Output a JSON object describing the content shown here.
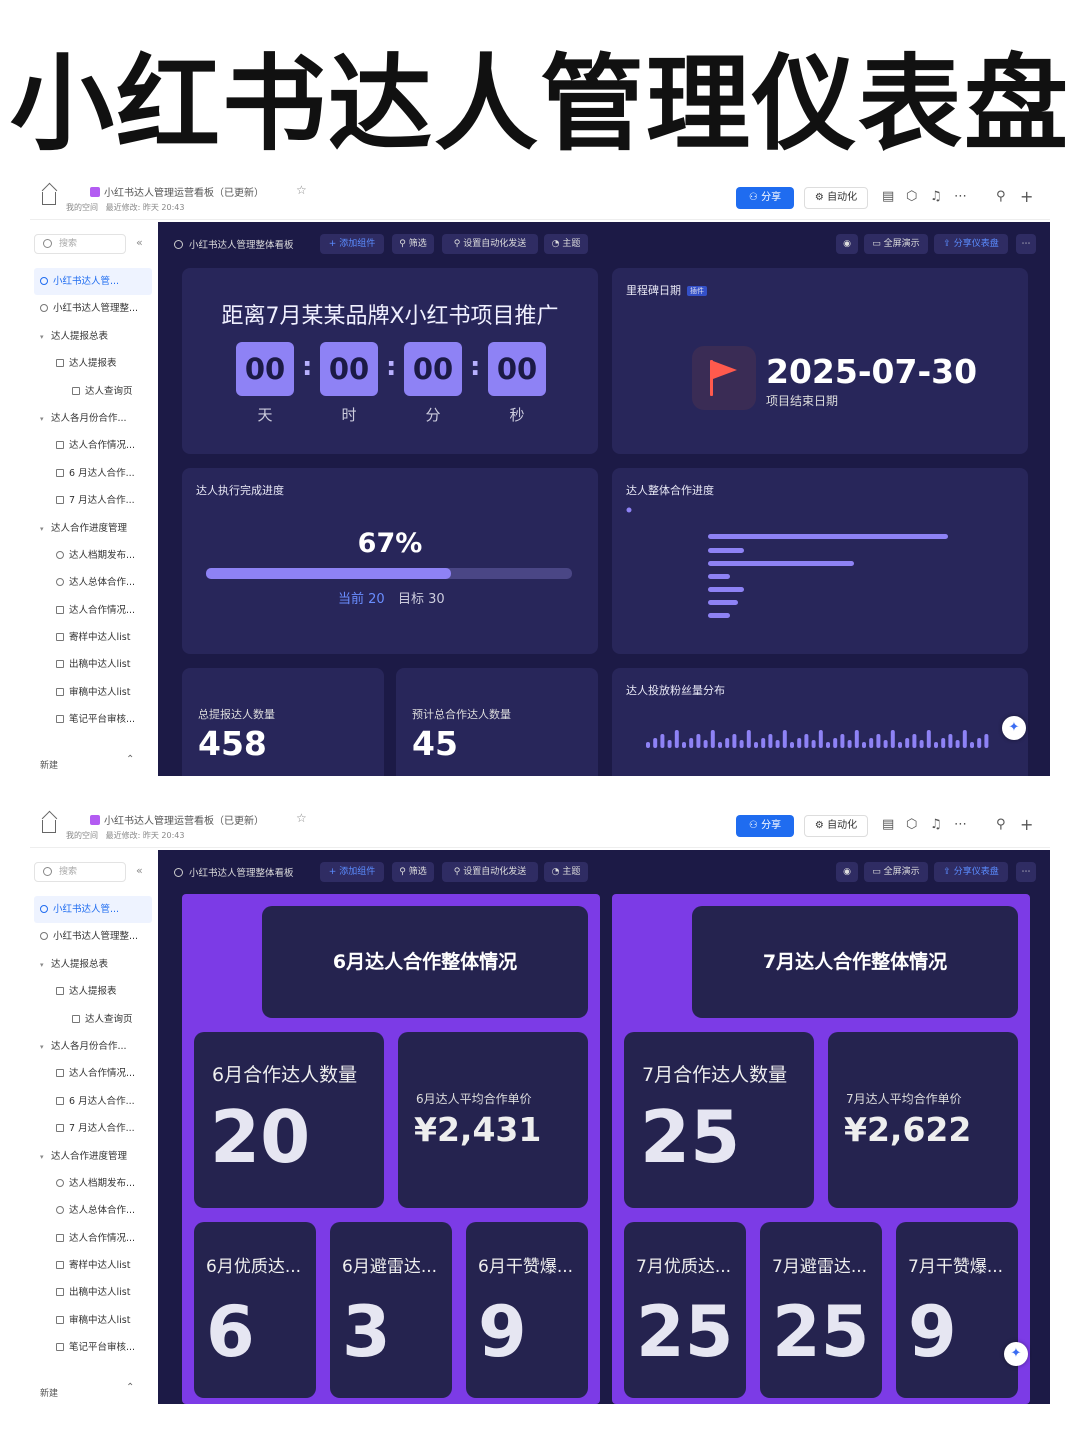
{
  "page_title": "小红书达人管理仪表盘",
  "top": {
    "crumb_title": "小红书达人管理运营看板（已更新）",
    "space": "我的空间",
    "modified": "最近修改: 昨天 20:43",
    "share": "分享",
    "automation": "自动化"
  },
  "sidebar": {
    "search_placeholder": "搜索",
    "new_label": "新建",
    "items": [
      {
        "label": "小红书达人管...",
        "type": "dash",
        "indent": 0,
        "active": true
      },
      {
        "label": "小红书达人管理整...",
        "type": "dash",
        "indent": 0
      },
      {
        "label": "达人提报总表",
        "type": "folder",
        "indent": 0
      },
      {
        "label": "达人提报表",
        "type": "table",
        "indent": 1
      },
      {
        "label": "达人查询页",
        "type": "form",
        "indent": 2
      },
      {
        "label": "达人各月份合作...",
        "type": "folder",
        "indent": 0
      },
      {
        "label": "达人合作情况...",
        "type": "table",
        "indent": 1
      },
      {
        "label": "6 月达人合作...",
        "type": "table",
        "indent": 1
      },
      {
        "label": "7 月达人合作...",
        "type": "table",
        "indent": 1
      },
      {
        "label": "达人合作进度管理",
        "type": "folder",
        "indent": 0
      },
      {
        "label": "达人档期发布...",
        "type": "dash",
        "indent": 1
      },
      {
        "label": "达人总体合作...",
        "type": "dash",
        "indent": 1
      },
      {
        "label": "达人合作情况...",
        "type": "table",
        "indent": 1
      },
      {
        "label": "寄样中达人list",
        "type": "table",
        "indent": 1
      },
      {
        "label": "出稿中达人list",
        "type": "table",
        "indent": 1
      },
      {
        "label": "审稿中达人list",
        "type": "table",
        "indent": 1
      },
      {
        "label": "笔记平台审核...",
        "type": "table",
        "indent": 1
      }
    ]
  },
  "dash_toolbar": {
    "title": "小红书达人管理整体看板",
    "add": "+ 添加组件",
    "filter": "筛选",
    "auto_send": "设置自动化发送",
    "theme": "主题",
    "fullscreen": "全屏演示",
    "share_dash": "分享仪表盘"
  },
  "countdown": {
    "heading": "距离7月某某品牌X小红书项目推广",
    "units": [
      {
        "value": "00",
        "label": "天"
      },
      {
        "value": "00",
        "label": "时"
      },
      {
        "value": "00",
        "label": "分"
      },
      {
        "value": "00",
        "label": "秒"
      }
    ]
  },
  "milestone": {
    "title": "里程碑日期",
    "date": "2025-07-30",
    "subtitle": "项目结束日期"
  },
  "progress": {
    "title": "达人执行完成进度",
    "percent_text": "67%",
    "fraction": 0.67,
    "current": "当前 20",
    "target": "目标 30"
  },
  "overall_progress": {
    "title": "达人整体合作进度"
  },
  "fans_dist": {
    "title": "达人投放粉丝量分布"
  },
  "stats": [
    {
      "label": "总提报达人数量",
      "value": "458"
    },
    {
      "label": "预计总合作达人数量",
      "value": "45"
    }
  ],
  "june": {
    "header": "6月达人合作整体情况",
    "count_label": "6月合作达人数量",
    "count": "20",
    "price_label": "6月达人平均合作单价",
    "price": "¥2,431",
    "metrics": [
      {
        "label": "6月优质达...",
        "value": "6"
      },
      {
        "label": "6月避雷达...",
        "value": "3"
      },
      {
        "label": "6月干赞爆...",
        "value": "9"
      }
    ]
  },
  "july": {
    "header": "7月达人合作整体情况",
    "count_label": "7月合作达人数量",
    "count": "25",
    "price_label": "7月达人平均合作单价",
    "price": "¥2,622",
    "metrics": [
      {
        "label": "7月优质达...",
        "value": "25"
      },
      {
        "label": "7月避雷达...",
        "value": "25"
      },
      {
        "label": "7月干赞爆...",
        "value": "9"
      }
    ]
  },
  "colors": {
    "dash_bg": "#1c1a46",
    "card": "#28265a",
    "accent": "#8e82f5",
    "purple": "#7c3be6",
    "share_blue": "#1f6cf0"
  }
}
